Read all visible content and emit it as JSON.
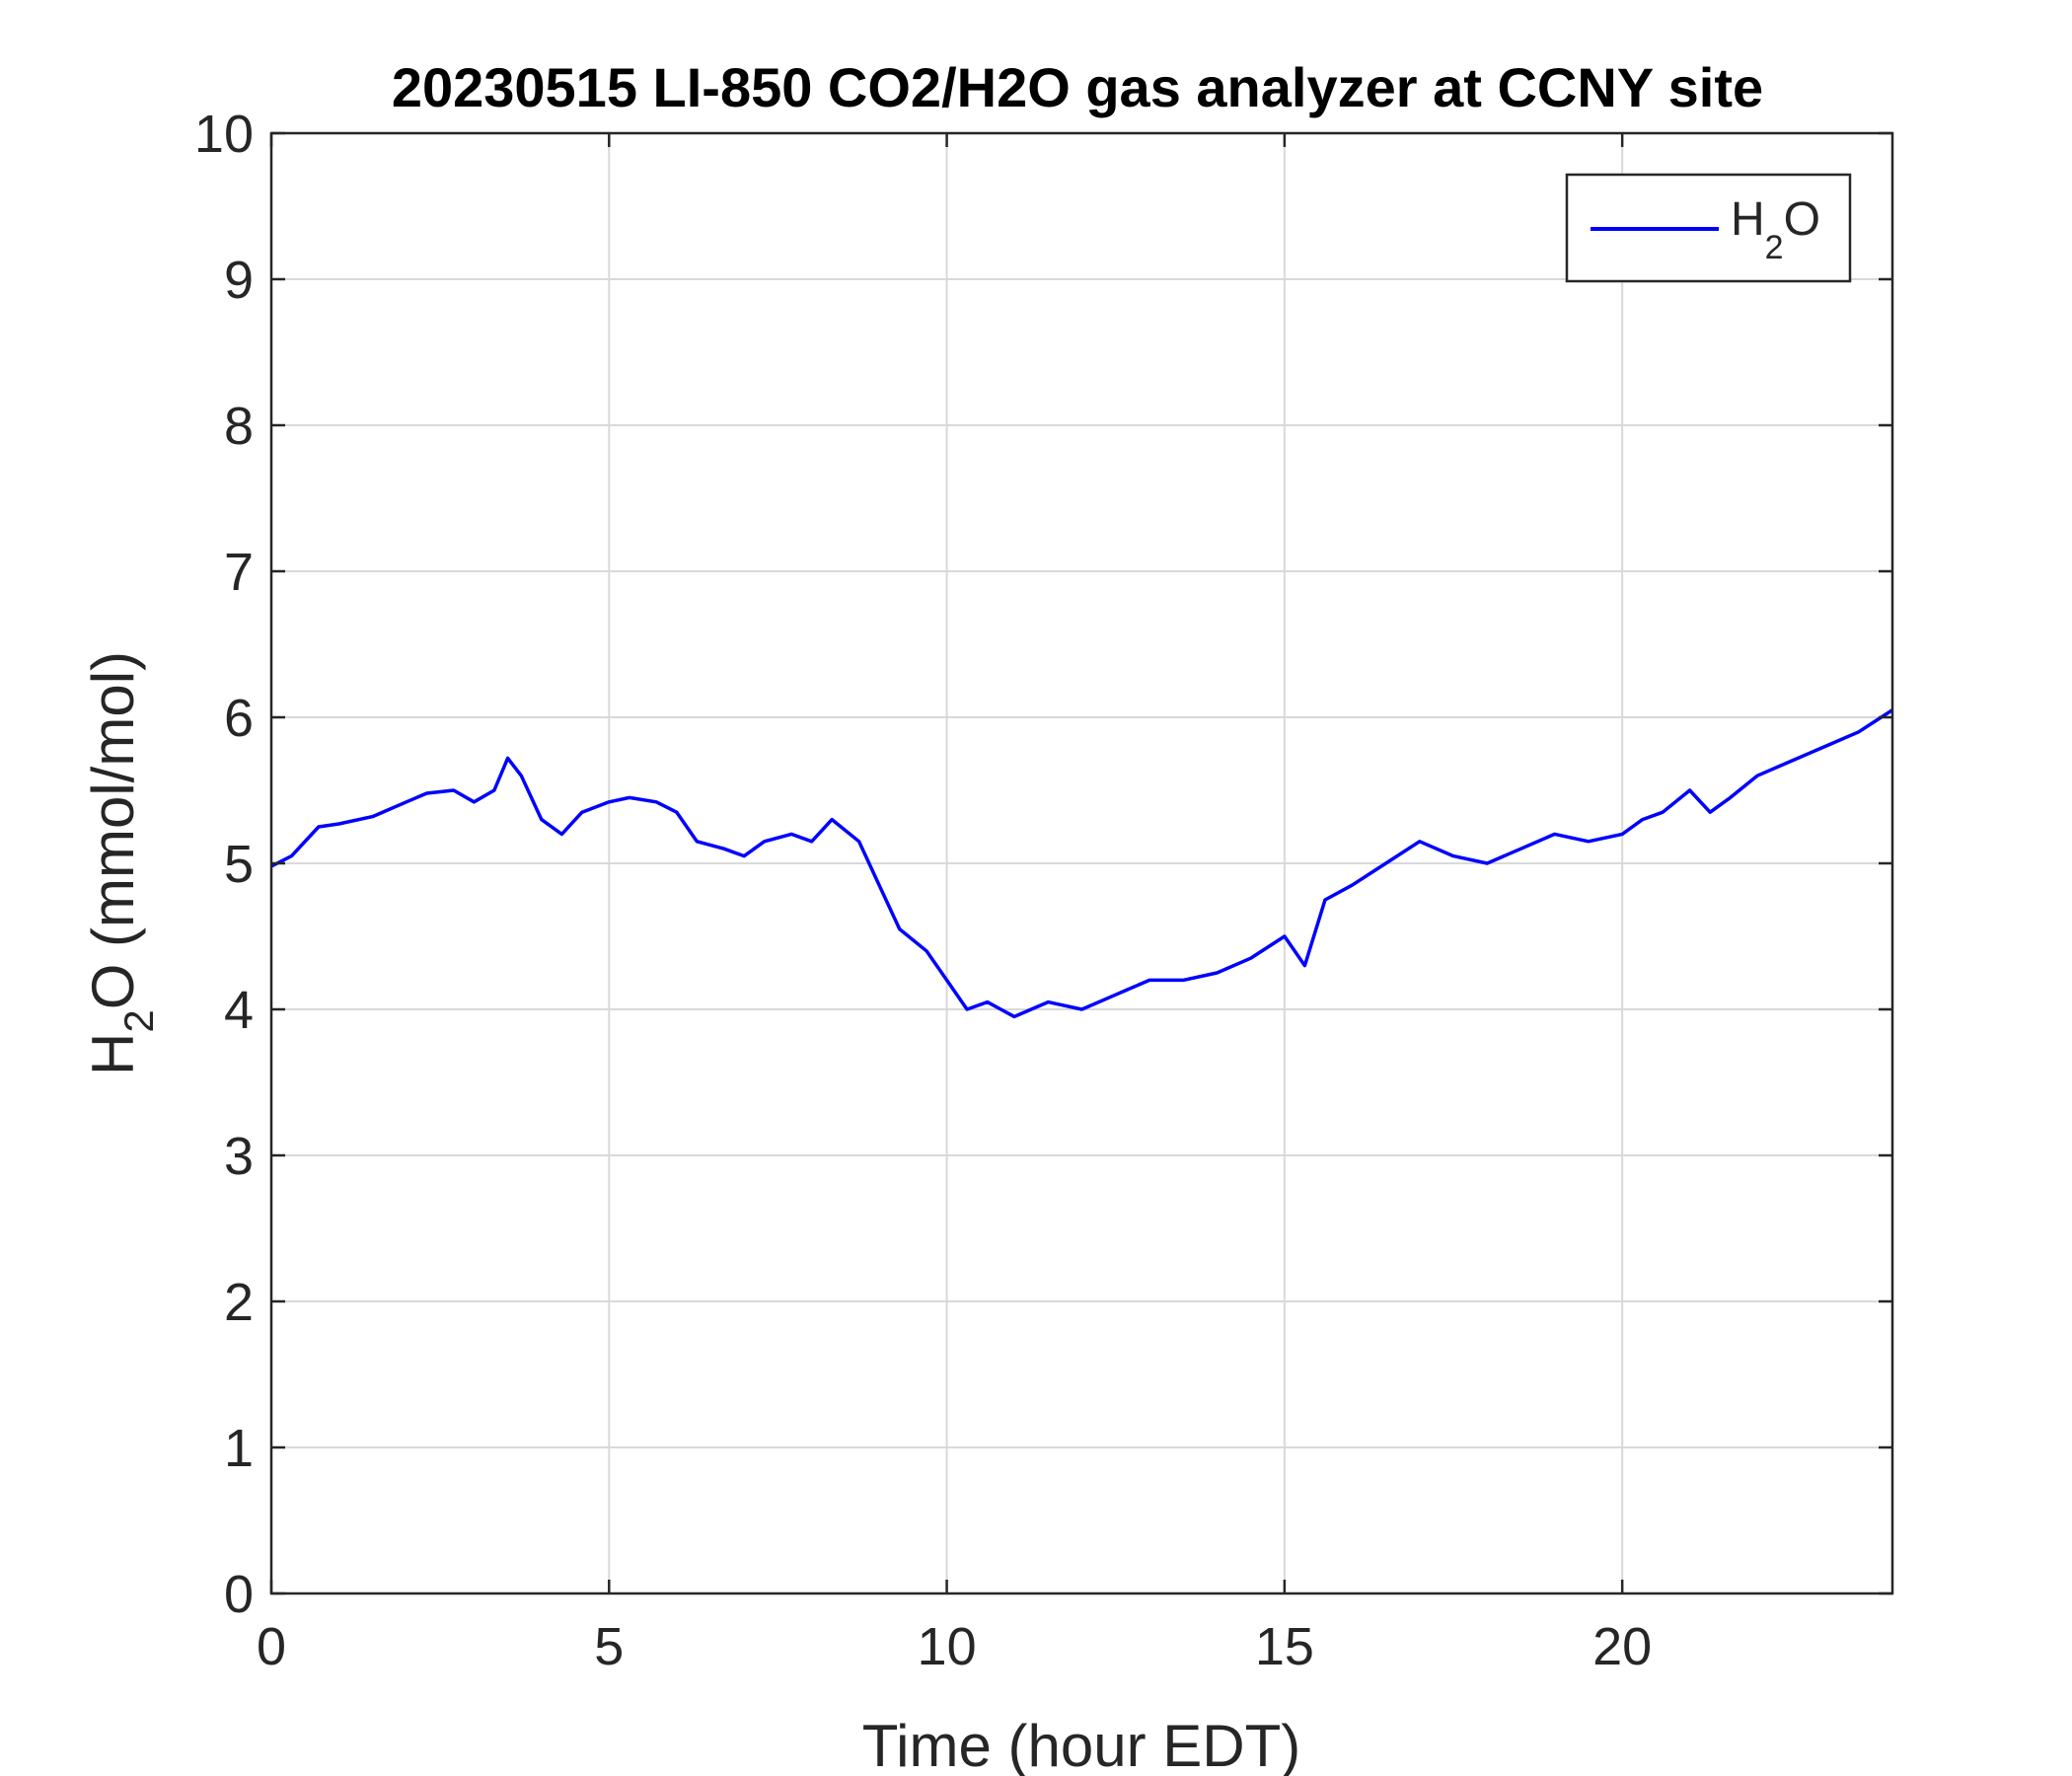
{
  "chart_data": {
    "type": "line",
    "title": "20230515 LI-850 CO2/H2O gas analyzer at CCNY site",
    "xlabel": "Time (hour EDT)",
    "ylabel": {
      "prefix": "H",
      "sub": "2",
      "suffix": "O (mmol/mol)"
    },
    "xlim": [
      0,
      24
    ],
    "ylim": [
      0,
      10
    ],
    "xticks": [
      0,
      5,
      10,
      15,
      20
    ],
    "yticks": [
      0,
      1,
      2,
      3,
      4,
      5,
      6,
      7,
      8,
      9,
      10
    ],
    "grid": true,
    "legend_position": "top-right",
    "series": [
      {
        "legend": {
          "prefix": "H",
          "sub": "2",
          "suffix": "O"
        },
        "color": "#0000ff",
        "x": [
          0,
          0.3,
          0.7,
          1.0,
          1.5,
          2.0,
          2.3,
          2.7,
          3.0,
          3.3,
          3.5,
          3.7,
          4.0,
          4.3,
          4.6,
          5.0,
          5.3,
          5.7,
          6.0,
          6.3,
          6.7,
          7.0,
          7.3,
          7.7,
          8.0,
          8.3,
          8.7,
          9.0,
          9.3,
          9.7,
          10.0,
          10.3,
          10.6,
          11.0,
          11.5,
          12.0,
          12.5,
          13.0,
          13.5,
          14.0,
          14.5,
          15.0,
          15.3,
          15.6,
          16.0,
          16.5,
          17.0,
          17.5,
          18.0,
          18.5,
          19.0,
          19.5,
          20.0,
          20.3,
          20.6,
          21.0,
          21.3,
          21.6,
          22.0,
          22.5,
          23.0,
          23.5,
          24.0
        ],
        "y": [
          4.98,
          5.05,
          5.25,
          5.27,
          5.32,
          5.42,
          5.48,
          5.5,
          5.42,
          5.5,
          5.72,
          5.6,
          5.3,
          5.2,
          5.35,
          5.42,
          5.45,
          5.42,
          5.35,
          5.15,
          5.1,
          5.05,
          5.15,
          5.2,
          5.15,
          5.3,
          5.15,
          4.85,
          4.55,
          4.4,
          4.2,
          4.0,
          4.05,
          3.95,
          4.05,
          4.0,
          4.1,
          4.2,
          4.2,
          4.25,
          4.35,
          4.5,
          4.3,
          4.75,
          4.85,
          5.0,
          5.15,
          5.05,
          5.0,
          5.1,
          5.2,
          5.15,
          5.2,
          5.3,
          5.35,
          5.5,
          5.35,
          5.45,
          5.6,
          5.7,
          5.8,
          5.9,
          6.05
        ]
      }
    ]
  }
}
